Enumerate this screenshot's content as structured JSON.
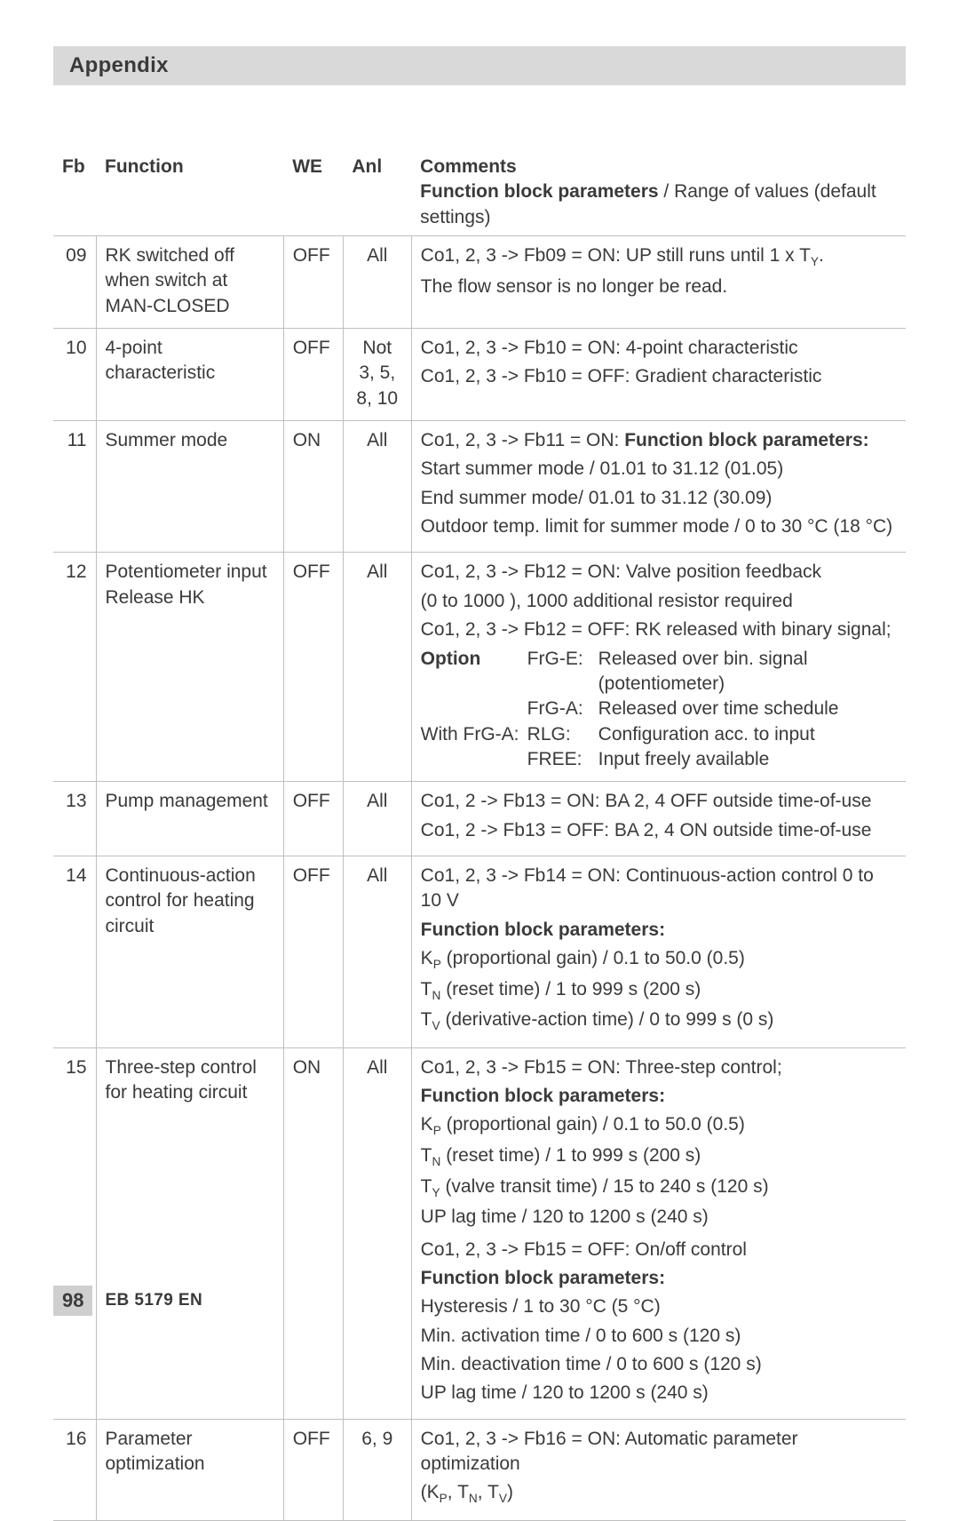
{
  "colors": {
    "header_bg": "#d9d9d9",
    "border": "#bfbfbf",
    "text": "#3a3a3a",
    "page_bg": "#ffffff",
    "footer_bg": "#cfcfcf"
  },
  "typography": {
    "base_fontsize_pt": 16,
    "header_fontsize_pt": 18,
    "font_family": "Futura / Trebuchet-like sans-serif"
  },
  "header": "Appendix",
  "columns": {
    "fb": "Fb",
    "function": "Function",
    "we": "WE",
    "anl": "Anl",
    "comments_top": "Comments",
    "comments_bold": "Function block parameters",
    "comments_rest": " / Range of values (default settings)"
  },
  "rows": [
    {
      "fb": "09",
      "function": "RK switched off when switch at MAN-CLOSED",
      "we": "OFF",
      "anl": "All",
      "comment_lines": [
        {
          "t": "Co1, 2, 3 -> Fb09 = ON: UP still runs until 1 x T"
        },
        {
          "t": "The flow sensor is no longer be read."
        }
      ],
      "first_line_sub": "Y",
      "first_line_tail": "."
    },
    {
      "fb": "10",
      "function": "4-point characteristic",
      "we": "OFF",
      "anl": "Not 3, 5, 8, 10",
      "comment_lines": [
        {
          "t": "Co1, 2, 3 -> Fb10 = ON: 4-point characteristic"
        },
        {
          "t": "Co1, 2, 3 -> Fb10 = OFF: Gradient characteristic"
        }
      ]
    },
    {
      "fb": "11",
      "function": "Summer mode",
      "we": "ON",
      "anl": "All",
      "lead": "Co1, 2, 3 -> Fb11 = ON: ",
      "lead_bold": "Function block parameters:",
      "comment_lines": [
        {
          "t": "Start summer mode /  01.01 to 31.12 (01.05)"
        },
        {
          "t": "End summer mode/  01.01 to 31.12 (30.09)"
        },
        {
          "t": "Outdoor temp. limit for summer mode / 0 to 30 °C (18 °C)"
        }
      ]
    },
    {
      "fb": "12",
      "function": "Potentiometer input Release HK",
      "we": "OFF",
      "anl": "All",
      "comment_lines": [
        {
          "t": "Co1, 2, 3 -> Fb12 = ON: Valve position feedback"
        },
        {
          "t": "(0 to 1000  ), 1000   additional resistor required"
        },
        {
          "t": "Co1, 2, 3 -> Fb12 = OFF: RK released with binary signal;"
        }
      ],
      "options": [
        {
          "k": "Option",
          "code": "FrG-E:",
          "v": "Released over bin. signal (potentiometer)"
        },
        {
          "k": "",
          "code": "FrG-A:",
          "v": "Released over time schedule"
        }
      ],
      "with_line_prefix": "With FrG-A:",
      "with_options": [
        {
          "code": "RLG:",
          "v": "Configuration acc. to input"
        },
        {
          "code": "FREE:",
          "v": "Input freely available"
        }
      ]
    },
    {
      "fb": "13",
      "function": "Pump management",
      "we": "OFF",
      "anl": "All",
      "comment_lines": [
        {
          "t": "Co1, 2 -> Fb13 = ON: BA 2, 4 OFF outside time-of-use"
        },
        {
          "t": "Co1, 2 -> Fb13 = OFF: BA 2, 4 ON outside time-of-use"
        }
      ]
    },
    {
      "fb": "14",
      "function": "Continuous-action control for heating circuit",
      "we": "OFF",
      "anl": "All",
      "lead_plain": "Co1, 2, 3 -> Fb14 = ON: Continuous-action control 0 to 10 V",
      "fbp_label": "Function block parameters:",
      "params": [
        {
          "sym": "K",
          "sub": "P",
          "rest": " (proportional gain) / 0.1 to 50.0 (0.5)"
        },
        {
          "sym": "T",
          "sub": "N",
          "rest": " (reset time) / 1 to 999 s (200 s)"
        },
        {
          "sym": "T",
          "sub": "V",
          "rest": " (derivative-action time) / 0 to 999 s (0 s)"
        }
      ]
    },
    {
      "fb": "15",
      "function": "Three-step control for heating circuit",
      "we": "ON",
      "anl": "All",
      "lead_plain": "Co1, 2, 3 -> Fb15 = ON: Three-step control;",
      "fbp_label": "Function block parameters:",
      "params": [
        {
          "sym": "K",
          "sub": "P",
          "rest": " (proportional gain) / 0.1 to 50.0 (0.5)"
        },
        {
          "sym": "T",
          "sub": "N",
          "rest": " (reset time) / 1 to 999 s (200 s)"
        },
        {
          "sym": "T",
          "sub": "Y",
          "rest": " (valve transit time) / 15 to 240 s (120 s)"
        },
        {
          "plain": "UP lag time / 120 to 1200 s (240 s)"
        }
      ],
      "second_lead": "Co1, 2, 3 -> Fb15 = OFF: On/off control",
      "fbp_label2": "Function block parameters:",
      "params2": [
        {
          "plain": "Hysteresis / 1 to 30 °C (5 °C)"
        },
        {
          "plain": "Min. activation time / 0 to 600 s (120 s)"
        },
        {
          "plain": "Min. deactivation time / 0 to 600 s (120 s)"
        },
        {
          "plain": "UP lag time / 120 to 1200 s (240 s)"
        }
      ]
    },
    {
      "fb": "16",
      "function": "Parameter optimization",
      "we": "OFF",
      "anl": "6, 9",
      "lead_plain": "Co1, 2, 3 -> Fb16 = ON: Automatic parameter optimization",
      "tail_syms": {
        "open": "(",
        "items": [
          {
            "sym": "K",
            "sub": "P"
          },
          {
            "sym": "T",
            "sub": "N"
          },
          {
            "sym": "T",
            "sub": "V"
          }
        ],
        "close": ")"
      }
    }
  ],
  "footer": {
    "page": "98",
    "doc": "EB 5179 EN"
  }
}
